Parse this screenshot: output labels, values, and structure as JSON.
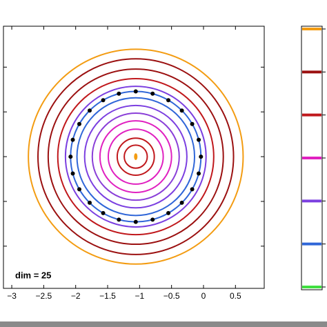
{
  "chart_data": {
    "type": "contour",
    "annotation": "dim = 25",
    "xlim": [
      -3.13,
      0.95
    ],
    "ylim": [
      -2.06,
      2.04
    ],
    "xticks": [
      {
        "value": -3,
        "label": "−3"
      },
      {
        "value": -2.5,
        "label": "−2.5"
      },
      {
        "value": -2,
        "label": "−2"
      },
      {
        "value": -1.5,
        "label": "−1.5"
      },
      {
        "value": -1,
        "label": "−1"
      },
      {
        "value": -0.5,
        "label": "−0.5"
      },
      0,
      0.5
    ],
    "yticks": [
      -1.4,
      -0.7,
      0,
      0.7,
      1.4
    ],
    "center": {
      "x": -1.06,
      "y": 0,
      "color": "#f39c12"
    },
    "contours": [
      {
        "radius": 1.68,
        "color": "#f39c12"
      },
      {
        "radius": 1.53,
        "color": "#9b1010"
      },
      {
        "radius": 1.37,
        "color": "#9b1010"
      },
      {
        "radius": 1.22,
        "color": "#c0181c"
      },
      {
        "radius": 1.1,
        "color": "#7b3fe0"
      },
      {
        "radius": 1.02,
        "color": "#2f66d8"
      },
      {
        "radius": 0.92,
        "color": "#2f66d8"
      },
      {
        "radius": 0.8,
        "color": "#7b3fe0"
      },
      {
        "radius": 0.68,
        "color": "#8a3fd8"
      },
      {
        "radius": 0.56,
        "color": "#e020c0"
      },
      {
        "radius": 0.43,
        "color": "#e020c0"
      },
      {
        "radius": 0.29,
        "color": "#c0181c"
      },
      {
        "radius": 0.18,
        "color": "#c0181c"
      }
    ],
    "points": {
      "color": "#000000",
      "x": [
        -0.04,
        -0.075,
        -0.177,
        -0.339,
        -0.55,
        -0.796,
        -1.06,
        -1.324,
        -1.57,
        -1.781,
        -1.943,
        -2.045,
        -2.08,
        -2.045,
        -1.943,
        -1.781,
        -1.57,
        -1.324,
        -1.06,
        -0.796,
        -0.55,
        -0.339,
        -0.177,
        -0.075
      ],
      "y": [
        0,
        0.264,
        0.51,
        0.721,
        0.883,
        0.985,
        1.02,
        0.985,
        0.883,
        0.721,
        0.51,
        0.264,
        0,
        -0.264,
        -0.51,
        -0.721,
        -0.883,
        -0.985,
        -1.02,
        -0.985,
        -0.883,
        -0.721,
        -0.51,
        -0.264
      ]
    },
    "colorbar": {
      "colors": [
        "#f39c12",
        "#9b1010",
        "#c0181c",
        "#e020c0",
        "#7b3fe0",
        "#2f66d8",
        "#40e040"
      ]
    }
  }
}
